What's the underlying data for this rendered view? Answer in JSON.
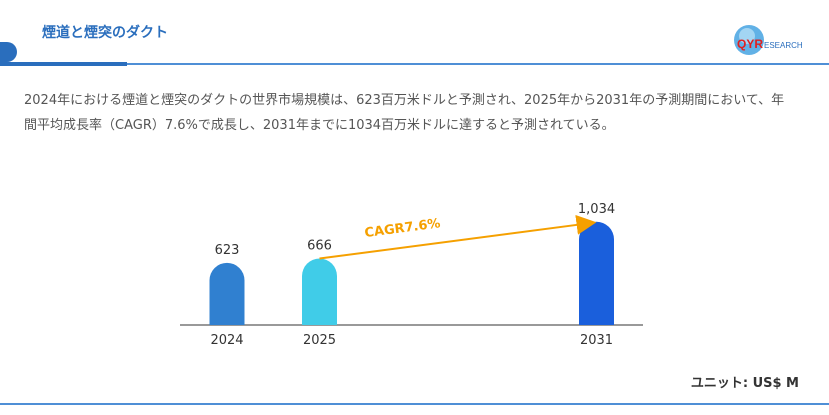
{
  "header": {
    "title": "煙道と煙突のダクト",
    "logo_text": "QYRESEARCH"
  },
  "description": "2024年における煙道と煙突のダクトの世界市場規模は、623百万米ドルと予測され、2025年から2031年の予測期間において、年間平均成長率（CAGR）7.6%で成長し、2031年までに1034百万米ドルに達すると予測されている。",
  "chart_data": {
    "type": "bar",
    "categories": [
      "2024",
      "2025",
      "2031"
    ],
    "values": [
      623,
      666,
      1034
    ],
    "value_labels": [
      "623",
      "666",
      "1,034"
    ],
    "colors": [
      "#3080d0",
      "#40cce8",
      "#1a5fdc"
    ],
    "annotation": {
      "text": "CAGR7.6%",
      "from": "2025",
      "to": "2031",
      "color": "#f5a000"
    },
    "unit": "ユニット: US$ M"
  }
}
